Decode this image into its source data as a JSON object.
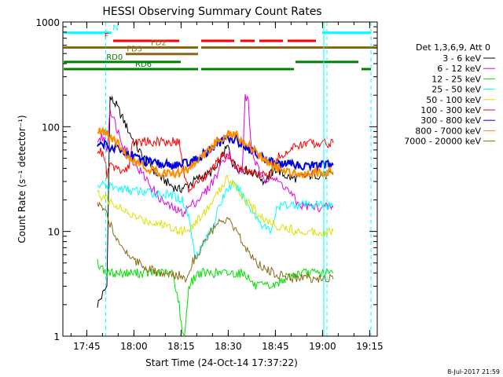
{
  "chart_data": {
    "type": "line",
    "title": "HESSI Observing Summary Count Rates",
    "xlabel": "Start Time (24-Oct-14 17:37:22)",
    "ylabel": "Count Rate (s⁻¹ detector⁻¹)",
    "y_scale": "log",
    "ylim": [
      1,
      1000
    ],
    "x_unit": "minutes after 17:37:22 UT",
    "xlim": [
      0,
      100
    ],
    "x_ticks": [
      {
        "x": 7.6,
        "label": "17:45"
      },
      {
        "x": 22.6,
        "label": "18:00"
      },
      {
        "x": 37.6,
        "label": "18:15"
      },
      {
        "x": 52.6,
        "label": "18:30"
      },
      {
        "x": 67.6,
        "label": "18:45"
      },
      {
        "x": 82.6,
        "label": "19:00"
      },
      {
        "x": 97.6,
        "label": "19:15"
      }
    ],
    "y_ticks": [
      {
        "y": 1,
        "label": "1"
      },
      {
        "y": 10,
        "label": "10"
      },
      {
        "y": 100,
        "label": "100"
      },
      {
        "y": 1000,
        "label": "1000"
      }
    ],
    "legend_header": "Det 1,3,6,9, Att 0",
    "legend_position": "right",
    "series": [
      {
        "name": "3 - 6 keV",
        "color": "#000000",
        "points": [
          [
            11,
            2
          ],
          [
            14,
            3
          ],
          [
            15,
            190
          ],
          [
            17,
            160
          ],
          [
            19,
            120
          ],
          [
            21,
            90
          ],
          [
            24,
            60
          ],
          [
            27,
            45
          ],
          [
            30,
            35
          ],
          [
            34,
            28
          ],
          [
            37,
            25
          ],
          [
            40,
            28
          ],
          [
            43,
            32
          ],
          [
            46,
            35
          ],
          [
            49,
            40
          ],
          [
            51,
            55
          ],
          [
            52.5,
            65
          ],
          [
            54,
            45
          ],
          [
            56,
            40
          ],
          [
            59,
            38
          ],
          [
            62,
            35
          ],
          [
            64,
            30
          ],
          [
            66,
            35
          ],
          [
            68,
            40
          ],
          [
            70,
            35
          ],
          [
            73,
            32
          ],
          [
            76,
            33
          ],
          [
            80,
            35
          ],
          [
            83,
            34
          ],
          [
            86,
            35
          ]
        ]
      },
      {
        "name": "6 - 12 keV",
        "color": "#e000e0",
        "points": [
          [
            11,
            75
          ],
          [
            13,
            80
          ],
          [
            14,
            60
          ],
          [
            15,
            150
          ],
          [
            17,
            100
          ],
          [
            19,
            70
          ],
          [
            21,
            55
          ],
          [
            24,
            40
          ],
          [
            27,
            30
          ],
          [
            30,
            22
          ],
          [
            33,
            18
          ],
          [
            36,
            16
          ],
          [
            38,
            15
          ],
          [
            40,
            17
          ],
          [
            43,
            20
          ],
          [
            46,
            25
          ],
          [
            49,
            35
          ],
          [
            51,
            50
          ],
          [
            53,
            55
          ],
          [
            55,
            40
          ],
          [
            57,
            35
          ],
          [
            58,
            200
          ],
          [
            59,
            170
          ],
          [
            60,
            60
          ],
          [
            62,
            40
          ],
          [
            64,
            30
          ],
          [
            66,
            35
          ],
          [
            68,
            30
          ],
          [
            70,
            28
          ],
          [
            72,
            24
          ],
          [
            75,
            18
          ],
          [
            80,
            17
          ],
          [
            86,
            17
          ]
        ]
      },
      {
        "name": "12 - 25 keV",
        "color": "#00e000",
        "points": [
          [
            11,
            5
          ],
          [
            14,
            4
          ],
          [
            16,
            4
          ],
          [
            20,
            4
          ],
          [
            25,
            4
          ],
          [
            30,
            4
          ],
          [
            35,
            4
          ],
          [
            37,
            2
          ],
          [
            38,
            1
          ],
          [
            39,
            1.2
          ],
          [
            40,
            3
          ],
          [
            43,
            4
          ],
          [
            46,
            4
          ],
          [
            49,
            4
          ],
          [
            52,
            4
          ],
          [
            55,
            4
          ],
          [
            58,
            4
          ],
          [
            61,
            3
          ],
          [
            64,
            3
          ],
          [
            67,
            3
          ],
          [
            70,
            3.5
          ],
          [
            75,
            4
          ],
          [
            80,
            4
          ],
          [
            86,
            4
          ]
        ]
      },
      {
        "name": "25 - 50 keV",
        "color": "#00ffff",
        "points": [
          [
            11,
            28
          ],
          [
            14,
            27
          ],
          [
            17,
            26
          ],
          [
            20,
            25
          ],
          [
            25,
            24
          ],
          [
            30,
            23
          ],
          [
            35,
            22
          ],
          [
            38,
            20
          ],
          [
            40,
            14
          ],
          [
            42,
            6
          ],
          [
            44,
            7
          ],
          [
            46,
            9
          ],
          [
            48,
            12
          ],
          [
            50,
            18
          ],
          [
            52,
            25
          ],
          [
            54,
            28
          ],
          [
            56,
            25
          ],
          [
            58,
            20
          ],
          [
            60,
            16
          ],
          [
            63,
            12
          ],
          [
            66,
            10
          ],
          [
            68,
            16
          ],
          [
            70,
            18
          ],
          [
            75,
            18
          ],
          [
            80,
            18
          ],
          [
            86,
            18
          ]
        ]
      },
      {
        "name": "50 - 100 keV",
        "color": "#e0e000",
        "points": [
          [
            11,
            23
          ],
          [
            14,
            20
          ],
          [
            17,
            18
          ],
          [
            20,
            15
          ],
          [
            25,
            13
          ],
          [
            30,
            12
          ],
          [
            35,
            11
          ],
          [
            38,
            10
          ],
          [
            41,
            11
          ],
          [
            44,
            14
          ],
          [
            47,
            18
          ],
          [
            50,
            25
          ],
          [
            52,
            32
          ],
          [
            54,
            30
          ],
          [
            56,
            25
          ],
          [
            58,
            20
          ],
          [
            60,
            17
          ],
          [
            63,
            14
          ],
          [
            66,
            12
          ],
          [
            70,
            11
          ],
          [
            75,
            10
          ],
          [
            80,
            10
          ],
          [
            86,
            10
          ]
        ]
      },
      {
        "name": "100 - 300 keV",
        "color": "#ff0000",
        "points": [
          [
            11,
            60
          ],
          [
            13,
            55
          ],
          [
            14,
            35
          ],
          [
            15,
            42
          ],
          [
            17,
            40
          ],
          [
            19,
            38
          ],
          [
            21,
            40
          ],
          [
            22,
            72
          ],
          [
            26,
            72
          ],
          [
            30,
            72
          ],
          [
            34,
            72
          ],
          [
            37,
            72
          ],
          [
            39,
            30
          ],
          [
            40,
            25
          ],
          [
            42,
            28
          ],
          [
            45,
            33
          ],
          [
            48,
            40
          ],
          [
            50,
            50
          ],
          [
            52,
            55
          ],
          [
            54,
            45
          ],
          [
            56,
            40
          ],
          [
            58,
            38
          ],
          [
            60,
            36
          ],
          [
            62,
            35
          ],
          [
            64,
            34
          ],
          [
            66,
            35
          ],
          [
            68,
            50
          ],
          [
            70,
            55
          ],
          [
            73,
            62
          ],
          [
            76,
            68
          ],
          [
            80,
            70
          ],
          [
            86,
            70
          ]
        ]
      },
      {
        "name": "300 - 800 keV",
        "color": "#0000e0",
        "points": [
          [
            11,
            70
          ],
          [
            14,
            68
          ],
          [
            15,
            65
          ],
          [
            17,
            62
          ],
          [
            19,
            58
          ],
          [
            21,
            55
          ],
          [
            24,
            50
          ],
          [
            27,
            46
          ],
          [
            30,
            44
          ],
          [
            34,
            43
          ],
          [
            37,
            43
          ],
          [
            40,
            45
          ],
          [
            43,
            50
          ],
          [
            46,
            58
          ],
          [
            49,
            68
          ],
          [
            52,
            76
          ],
          [
            54,
            78
          ],
          [
            56,
            72
          ],
          [
            58,
            65
          ],
          [
            61,
            57
          ],
          [
            64,
            50
          ],
          [
            67,
            46
          ],
          [
            70,
            44
          ],
          [
            74,
            43
          ],
          [
            78,
            43
          ],
          [
            82,
            43
          ],
          [
            86,
            43
          ]
        ]
      },
      {
        "name": "800 - 7000 keV",
        "color": "#ff8c00",
        "points": [
          [
            11,
            90
          ],
          [
            13,
            88
          ],
          [
            15,
            80
          ],
          [
            17,
            70
          ],
          [
            19,
            60
          ],
          [
            21,
            52
          ],
          [
            24,
            45
          ],
          [
            27,
            40
          ],
          [
            30,
            37
          ],
          [
            34,
            36
          ],
          [
            37,
            36
          ],
          [
            40,
            40
          ],
          [
            43,
            48
          ],
          [
            46,
            58
          ],
          [
            49,
            72
          ],
          [
            52,
            84
          ],
          [
            54,
            86
          ],
          [
            56,
            80
          ],
          [
            58,
            70
          ],
          [
            61,
            58
          ],
          [
            64,
            48
          ],
          [
            67,
            42
          ],
          [
            70,
            38
          ],
          [
            73,
            37
          ],
          [
            76,
            36
          ],
          [
            80,
            36
          ],
          [
            86,
            37
          ]
        ]
      },
      {
        "name": "7000 - 20000 keV",
        "color": "#8b6914",
        "points": [
          [
            11,
            18
          ],
          [
            13,
            16
          ],
          [
            15,
            12
          ],
          [
            17,
            9
          ],
          [
            19,
            7
          ],
          [
            21,
            6
          ],
          [
            24,
            5
          ],
          [
            27,
            4.5
          ],
          [
            30,
            4
          ],
          [
            34,
            3.8
          ],
          [
            37,
            3.8
          ],
          [
            39,
            3.5
          ],
          [
            41,
            5
          ],
          [
            44,
            7
          ],
          [
            47,
            10
          ],
          [
            50,
            12
          ],
          [
            52,
            13
          ],
          [
            54,
            11
          ],
          [
            56,
            9
          ],
          [
            58,
            7
          ],
          [
            60,
            6
          ],
          [
            62,
            5
          ],
          [
            64,
            4.5
          ],
          [
            67,
            4
          ],
          [
            70,
            3.8
          ],
          [
            74,
            3.6
          ],
          [
            78,
            3.6
          ],
          [
            82,
            3.5
          ],
          [
            86,
            3.5
          ]
        ]
      }
    ],
    "flag_bars": [
      {
        "label": "N",
        "color": "#00ffff",
        "y": 790,
        "segments": [
          [
            0.3,
            15.5
          ],
          [
            82.5,
            98
          ]
        ]
      },
      {
        "label": "F",
        "color": "#ff0000",
        "y": 660,
        "segments": [
          [
            16,
            37
          ],
          [
            44,
            54.5
          ],
          [
            56.5,
            61
          ],
          [
            62.5,
            70
          ],
          [
            71.5,
            80.5
          ]
        ]
      },
      {
        "label": "FD2",
        "color": "#8b6914",
        "y": 570,
        "segments": [
          [
            0.2,
            43
          ],
          [
            44,
            100
          ]
        ]
      },
      {
        "label": "FD3",
        "color": "#8b6914",
        "y": 495,
        "segments": [
          [
            20,
            43
          ]
        ]
      },
      {
        "label": "RD0",
        "color": "#008000",
        "y": 415,
        "segments": [
          [
            0.3,
            37.5
          ],
          [
            74,
            94
          ]
        ]
      },
      {
        "label": "RD6",
        "color": "#008000",
        "y": 355,
        "segments": [
          [
            0.3,
            43
          ],
          [
            44,
            73.5
          ],
          [
            95,
            98
          ]
        ]
      }
    ],
    "vertical_lines": [
      {
        "x": 13.6,
        "style": "dashed",
        "color": "#00ffff"
      },
      {
        "x": 83.0,
        "style": "solid",
        "color": "#00ffff"
      },
      {
        "x": 84.0,
        "style": "dashed",
        "color": "#00ffff"
      },
      {
        "x": 98.0,
        "style": "dashed",
        "color": "#00ffff"
      }
    ],
    "grid": false
  },
  "footer": {
    "date_stamp": "8-Jul-2017 21:59"
  }
}
